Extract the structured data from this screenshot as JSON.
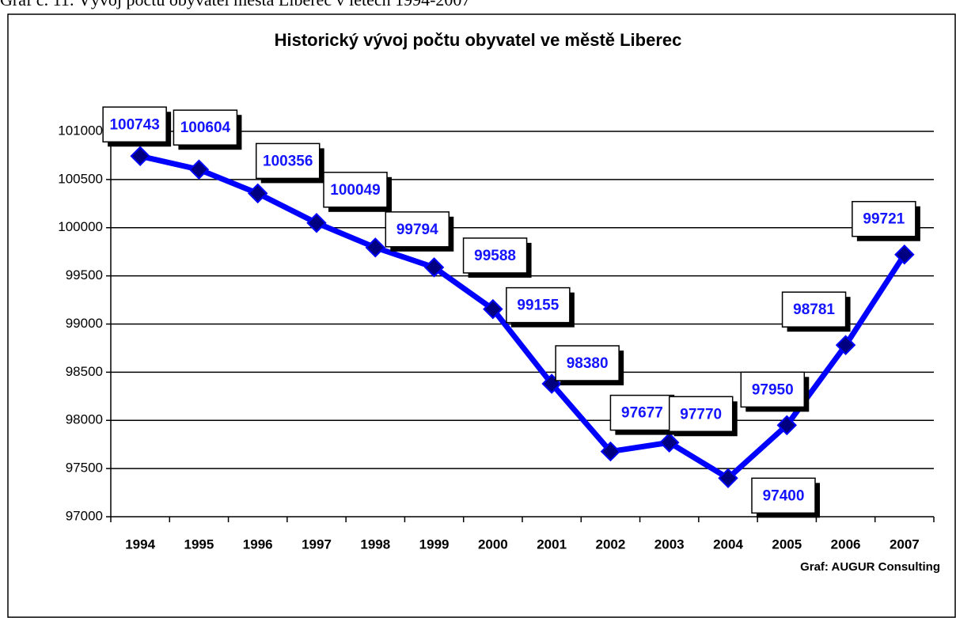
{
  "caption": "Graf č. 11: Vývoj počtu obyvatel města Liberec v letech 1994-2007",
  "chart_data": {
    "type": "line",
    "title": "Historický vývoj počtu obyvatel ve městě Liberec",
    "categories": [
      "1994",
      "1995",
      "1996",
      "1997",
      "1998",
      "1999",
      "2000",
      "2001",
      "2002",
      "2003",
      "2004",
      "2005",
      "2006",
      "2007"
    ],
    "series": [
      {
        "color": "#0000ff",
        "values": [
          100743,
          100604,
          100356,
          100049,
          99794,
          99588,
          99155,
          98380,
          97677,
          97770,
          97400,
          97950,
          98781,
          99721
        ]
      }
    ],
    "ylim": [
      97000,
      101000
    ],
    "yticks": [
      97000,
      97500,
      98000,
      98500,
      99000,
      99500,
      100000,
      100500,
      101000
    ],
    "grid": true,
    "annotation": "Graf: AUGUR Consulting"
  }
}
